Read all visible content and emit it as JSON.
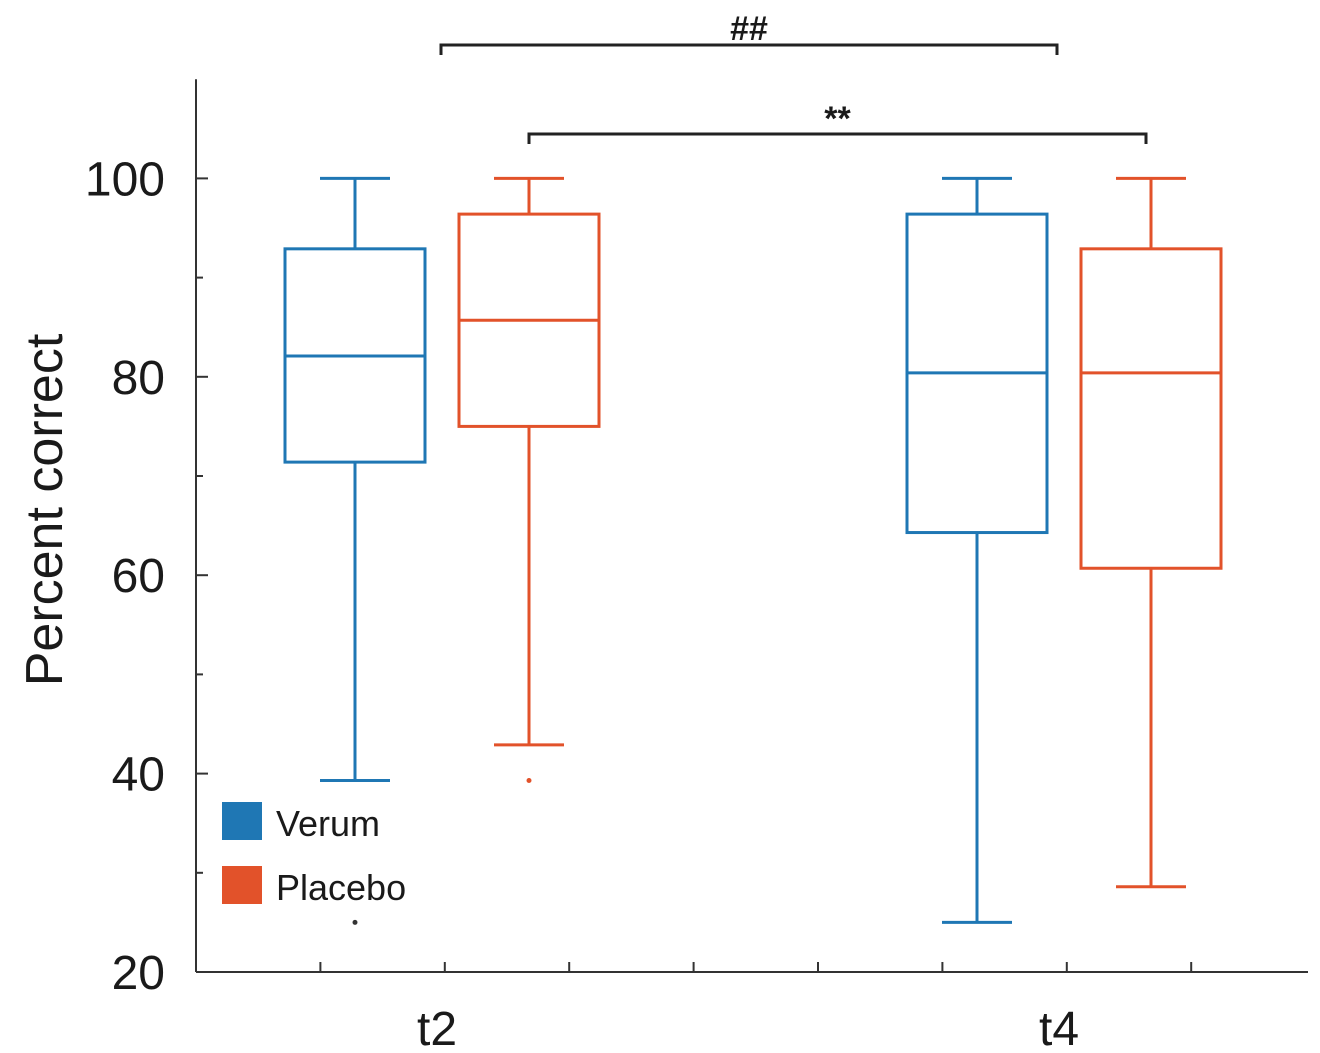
{
  "chart_data": {
    "type": "box",
    "ylabel": "Percent correct",
    "xlabel": "",
    "ylim": [
      20,
      110
    ],
    "yticks": [
      "20",
      "40",
      "60",
      "80",
      "100"
    ],
    "categories": [
      "t2",
      "t4"
    ],
    "series": [
      {
        "name": "Verum",
        "color": "#1f77b4",
        "boxes": [
          {
            "category": "t2",
            "whisker_low": 39.3,
            "q1": 71.4,
            "median": 82.1,
            "q3": 92.9,
            "whisker_high": 100,
            "outliers": [
              25
            ]
          },
          {
            "category": "t4",
            "whisker_low": 25,
            "q1": 64.3,
            "median": 80.4,
            "q3": 96.4,
            "whisker_high": 100,
            "outliers": []
          }
        ]
      },
      {
        "name": "Placebo",
        "color": "#e2522a",
        "boxes": [
          {
            "category": "t2",
            "whisker_low": 42.9,
            "q1": 75,
            "median": 85.7,
            "q3": 96.4,
            "whisker_high": 100,
            "outliers": [
              39.3
            ]
          },
          {
            "category": "t4",
            "whisker_low": 28.6,
            "q1": 60.7,
            "median": 80.4,
            "q3": 92.9,
            "whisker_high": 100,
            "outliers": []
          }
        ]
      }
    ],
    "annotations": [
      {
        "label": "##",
        "from": "t2",
        "to": "t4",
        "level": 1
      },
      {
        "label": "**",
        "from": "t2",
        "to": "t4",
        "level": 2
      }
    ],
    "legend": {
      "placement": "bottom-left",
      "entries": [
        "Verum",
        "Placebo"
      ]
    },
    "grid": false
  }
}
